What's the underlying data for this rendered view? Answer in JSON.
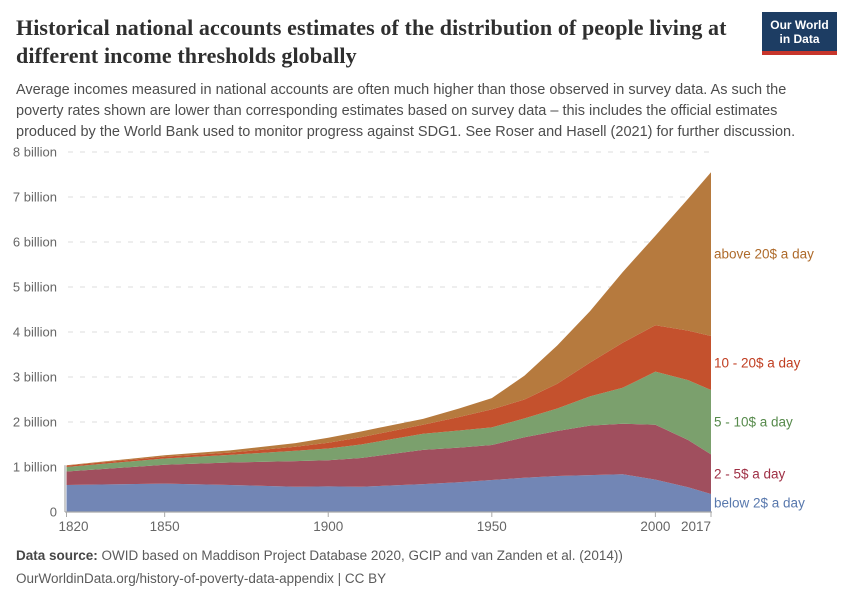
{
  "header": {
    "title": "Historical national accounts estimates of the distribution of people living at different income thresholds globally",
    "logo": {
      "line1": "Our World",
      "line2": "in Data",
      "bg_color": "#1d3d63",
      "accent_color": "#c7352b"
    }
  },
  "subtitle": "Average incomes measured in national accounts are often much higher than those observed in survey data. As such the poverty rates shown are lower than corresponding estimates based on survey data – this includes the official estimates produced by the World Bank used to monitor progress against SDG1. See Roser and Hasell (2021) for further discussion.",
  "footer": {
    "source_label": "Data source:",
    "source_text": " OWID based on Maddison Project Database 2020, GCIP and van Zanden et al. (2014))",
    "link_text": "OurWorldinData.org/history-of-poverty-data-appendix | CC BY"
  },
  "chart_data": {
    "type": "area",
    "stacked": true,
    "title": "Historical national accounts estimates of the distribution of people living at different income thresholds globally",
    "xlabel": "",
    "ylabel": "",
    "units": "billion people",
    "grid": "horizontal-dashed",
    "legend_position": "right-of-plot, colored text labels",
    "xlim": [
      1820,
      2017
    ],
    "ylim": [
      0,
      8
    ],
    "x_ticks": [
      1820,
      1850,
      1900,
      1950,
      2000,
      2017
    ],
    "y_ticks": [
      {
        "value": 0,
        "label": "0"
      },
      {
        "value": 1,
        "label": "1 billion"
      },
      {
        "value": 2,
        "label": "2 billion"
      },
      {
        "value": 3,
        "label": "3 billion"
      },
      {
        "value": 4,
        "label": "4 billion"
      },
      {
        "value": 5,
        "label": "5 billion"
      },
      {
        "value": 6,
        "label": "6 billion"
      },
      {
        "value": 7,
        "label": "7 billion"
      },
      {
        "value": 8,
        "label": "8 billion"
      }
    ],
    "x": [
      1820,
      1850,
      1870,
      1890,
      1900,
      1910,
      1929,
      1940,
      1950,
      1960,
      1970,
      1980,
      1990,
      2000,
      2010,
      2017
    ],
    "series": [
      {
        "name": "below 2$ a day",
        "color": "#7286b5",
        "label_color": "#5878ad",
        "values": [
          0.6,
          0.63,
          0.6,
          0.56,
          0.57,
          0.56,
          0.62,
          0.66,
          0.71,
          0.76,
          0.8,
          0.82,
          0.84,
          0.72,
          0.55,
          0.4
        ]
      },
      {
        "name": "2 - 5$ a day",
        "color": "#a04f5e",
        "label_color": "#9e2f44",
        "values": [
          0.3,
          0.42,
          0.5,
          0.57,
          0.58,
          0.64,
          0.76,
          0.77,
          0.78,
          0.9,
          1.0,
          1.1,
          1.12,
          1.22,
          1.05,
          0.88
        ]
      },
      {
        "name": "5 - 10$ a day",
        "color": "#7ba06d",
        "label_color": "#568a4b",
        "values": [
          0.1,
          0.14,
          0.17,
          0.23,
          0.26,
          0.3,
          0.36,
          0.38,
          0.39,
          0.42,
          0.5,
          0.65,
          0.8,
          1.18,
          1.33,
          1.43
        ]
      },
      {
        "name": "10 - 20$ a day",
        "color": "#c4512d",
        "label_color": "#c03d20",
        "values": [
          0.03,
          0.04,
          0.05,
          0.09,
          0.13,
          0.16,
          0.2,
          0.3,
          0.4,
          0.42,
          0.55,
          0.75,
          1.0,
          1.03,
          1.1,
          1.2
        ]
      },
      {
        "name": "above 20$ a day",
        "color": "#b67a3e",
        "label_color": "#ae6a2a",
        "values": [
          0.01,
          0.03,
          0.05,
          0.08,
          0.11,
          0.13,
          0.13,
          0.19,
          0.25,
          0.53,
          0.85,
          1.14,
          1.57,
          1.99,
          2.93,
          3.64
        ]
      }
    ]
  }
}
